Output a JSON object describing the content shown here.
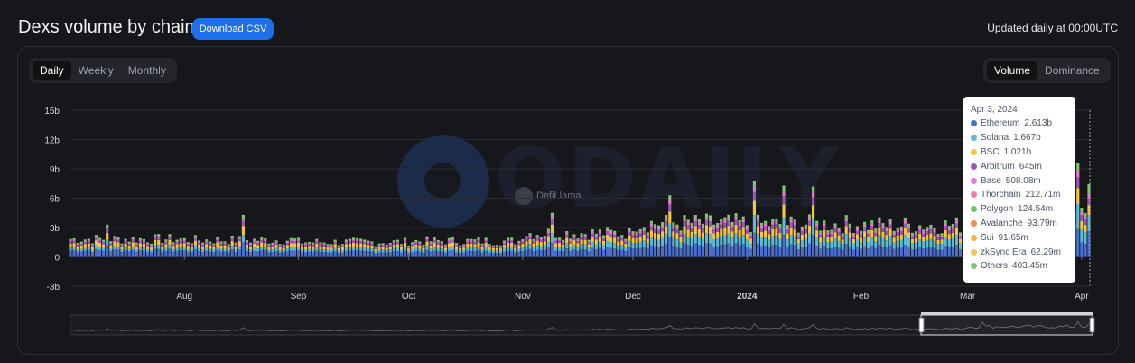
{
  "header": {
    "title": "Dexs volume by chain",
    "download_label": "Download CSV",
    "updated": "Updated daily at 00:00UTC"
  },
  "period_toggle": [
    "Daily",
    "Weekly",
    "Monthly"
  ],
  "period_selected": "Daily",
  "metric_toggle": [
    "Volume",
    "Dominance"
  ],
  "metric_selected": "Volume",
  "watermark": {
    "text": "ODAILY",
    "source": "DefiLlama"
  },
  "tooltip": {
    "date": "Apr 3, 2024",
    "items": [
      {
        "name": "Ethereum",
        "value": "2.613b",
        "color": "#4a6fd1"
      },
      {
        "name": "Solana",
        "value": "1.667b",
        "color": "#5bbad5"
      },
      {
        "name": "BSC",
        "value": "1.021b",
        "color": "#f5c542"
      },
      {
        "name": "Arbitrum",
        "value": "645m",
        "color": "#9b59b6"
      },
      {
        "name": "Base",
        "value": "508.08m",
        "color": "#e87ad0"
      },
      {
        "name": "Thorchain",
        "value": "212.71m",
        "color": "#f07bb0"
      },
      {
        "name": "Polygon",
        "value": "124.54m",
        "color": "#6ec66e"
      },
      {
        "name": "Avalanche",
        "value": "93.79m",
        "color": "#f28c5a"
      },
      {
        "name": "Sui",
        "value": "91.65m",
        "color": "#f2b84b"
      },
      {
        "name": "zkSync Era",
        "value": "62.29m",
        "color": "#f2c75c"
      },
      {
        "name": "Others",
        "value": "403.45m",
        "color": "#7bc96f"
      }
    ]
  },
  "chart_data": {
    "type": "bar",
    "stacked": true,
    "ylim": [
      -3,
      15
    ],
    "y_ticks": [
      "15b",
      "12b",
      "9b",
      "6b",
      "3b",
      "0",
      "-3b"
    ],
    "y_tick_values": [
      15,
      12,
      9,
      6,
      3,
      0,
      -3
    ],
    "x_ticks": [
      "Aug",
      "Sep",
      "Oct",
      "Nov",
      "Dec",
      "2024",
      "Feb",
      "Mar",
      "Apr"
    ],
    "x_tick_dates": [
      "2023-08-01",
      "2023-09-01",
      "2023-10-01",
      "2023-11-01",
      "2023-12-01",
      "2024-01-01",
      "2024-02-01",
      "2024-03-01",
      "2024-04-01"
    ],
    "x_range": [
      "2023-07-01",
      "2024-04-03"
    ],
    "unit": "billions USD",
    "series_names": [
      "Ethereum",
      "Solana",
      "BSC",
      "Arbitrum",
      "Base",
      "Others"
    ],
    "series_colors": [
      "#4a6fd1",
      "#5bbad5",
      "#f5c542",
      "#9b59b6",
      "#e87ad0",
      "#7bc96f"
    ],
    "monthly_avg_total": [
      {
        "month": "2023-07",
        "total": 1.8
      },
      {
        "month": "2023-08",
        "total": 1.7
      },
      {
        "month": "2023-09",
        "total": 1.5
      },
      {
        "month": "2023-10",
        "total": 1.6
      },
      {
        "month": "2023-11",
        "total": 2.4
      },
      {
        "month": "2023-12",
        "total": 3.4
      },
      {
        "month": "2024-01",
        "total": 3.3
      },
      {
        "month": "2024-02",
        "total": 3.2
      },
      {
        "month": "2024-03",
        "total": 5.0
      }
    ],
    "peaks": [
      {
        "date": "2023-07-11",
        "total": 3.3
      },
      {
        "date": "2023-08-17",
        "total": 4.3
      },
      {
        "date": "2023-11-09",
        "total": 4.5
      },
      {
        "date": "2023-12-11",
        "total": 6.3
      },
      {
        "date": "2024-01-03",
        "total": 7.8
      },
      {
        "date": "2024-01-11",
        "total": 7.3
      },
      {
        "date": "2024-01-19",
        "total": 7.2
      },
      {
        "date": "2024-03-05",
        "total": 9.1
      },
      {
        "date": "2024-03-31",
        "total": 9.6
      }
    ],
    "last_day": {
      "date": "2024-04-03",
      "values": {
        "Ethereum": 2.613,
        "Solana": 1.667,
        "BSC": 1.021,
        "Arbitrum": 0.645,
        "Base": 0.508,
        "Others": 0.988
      }
    },
    "grid": true,
    "legend": "tooltip"
  }
}
